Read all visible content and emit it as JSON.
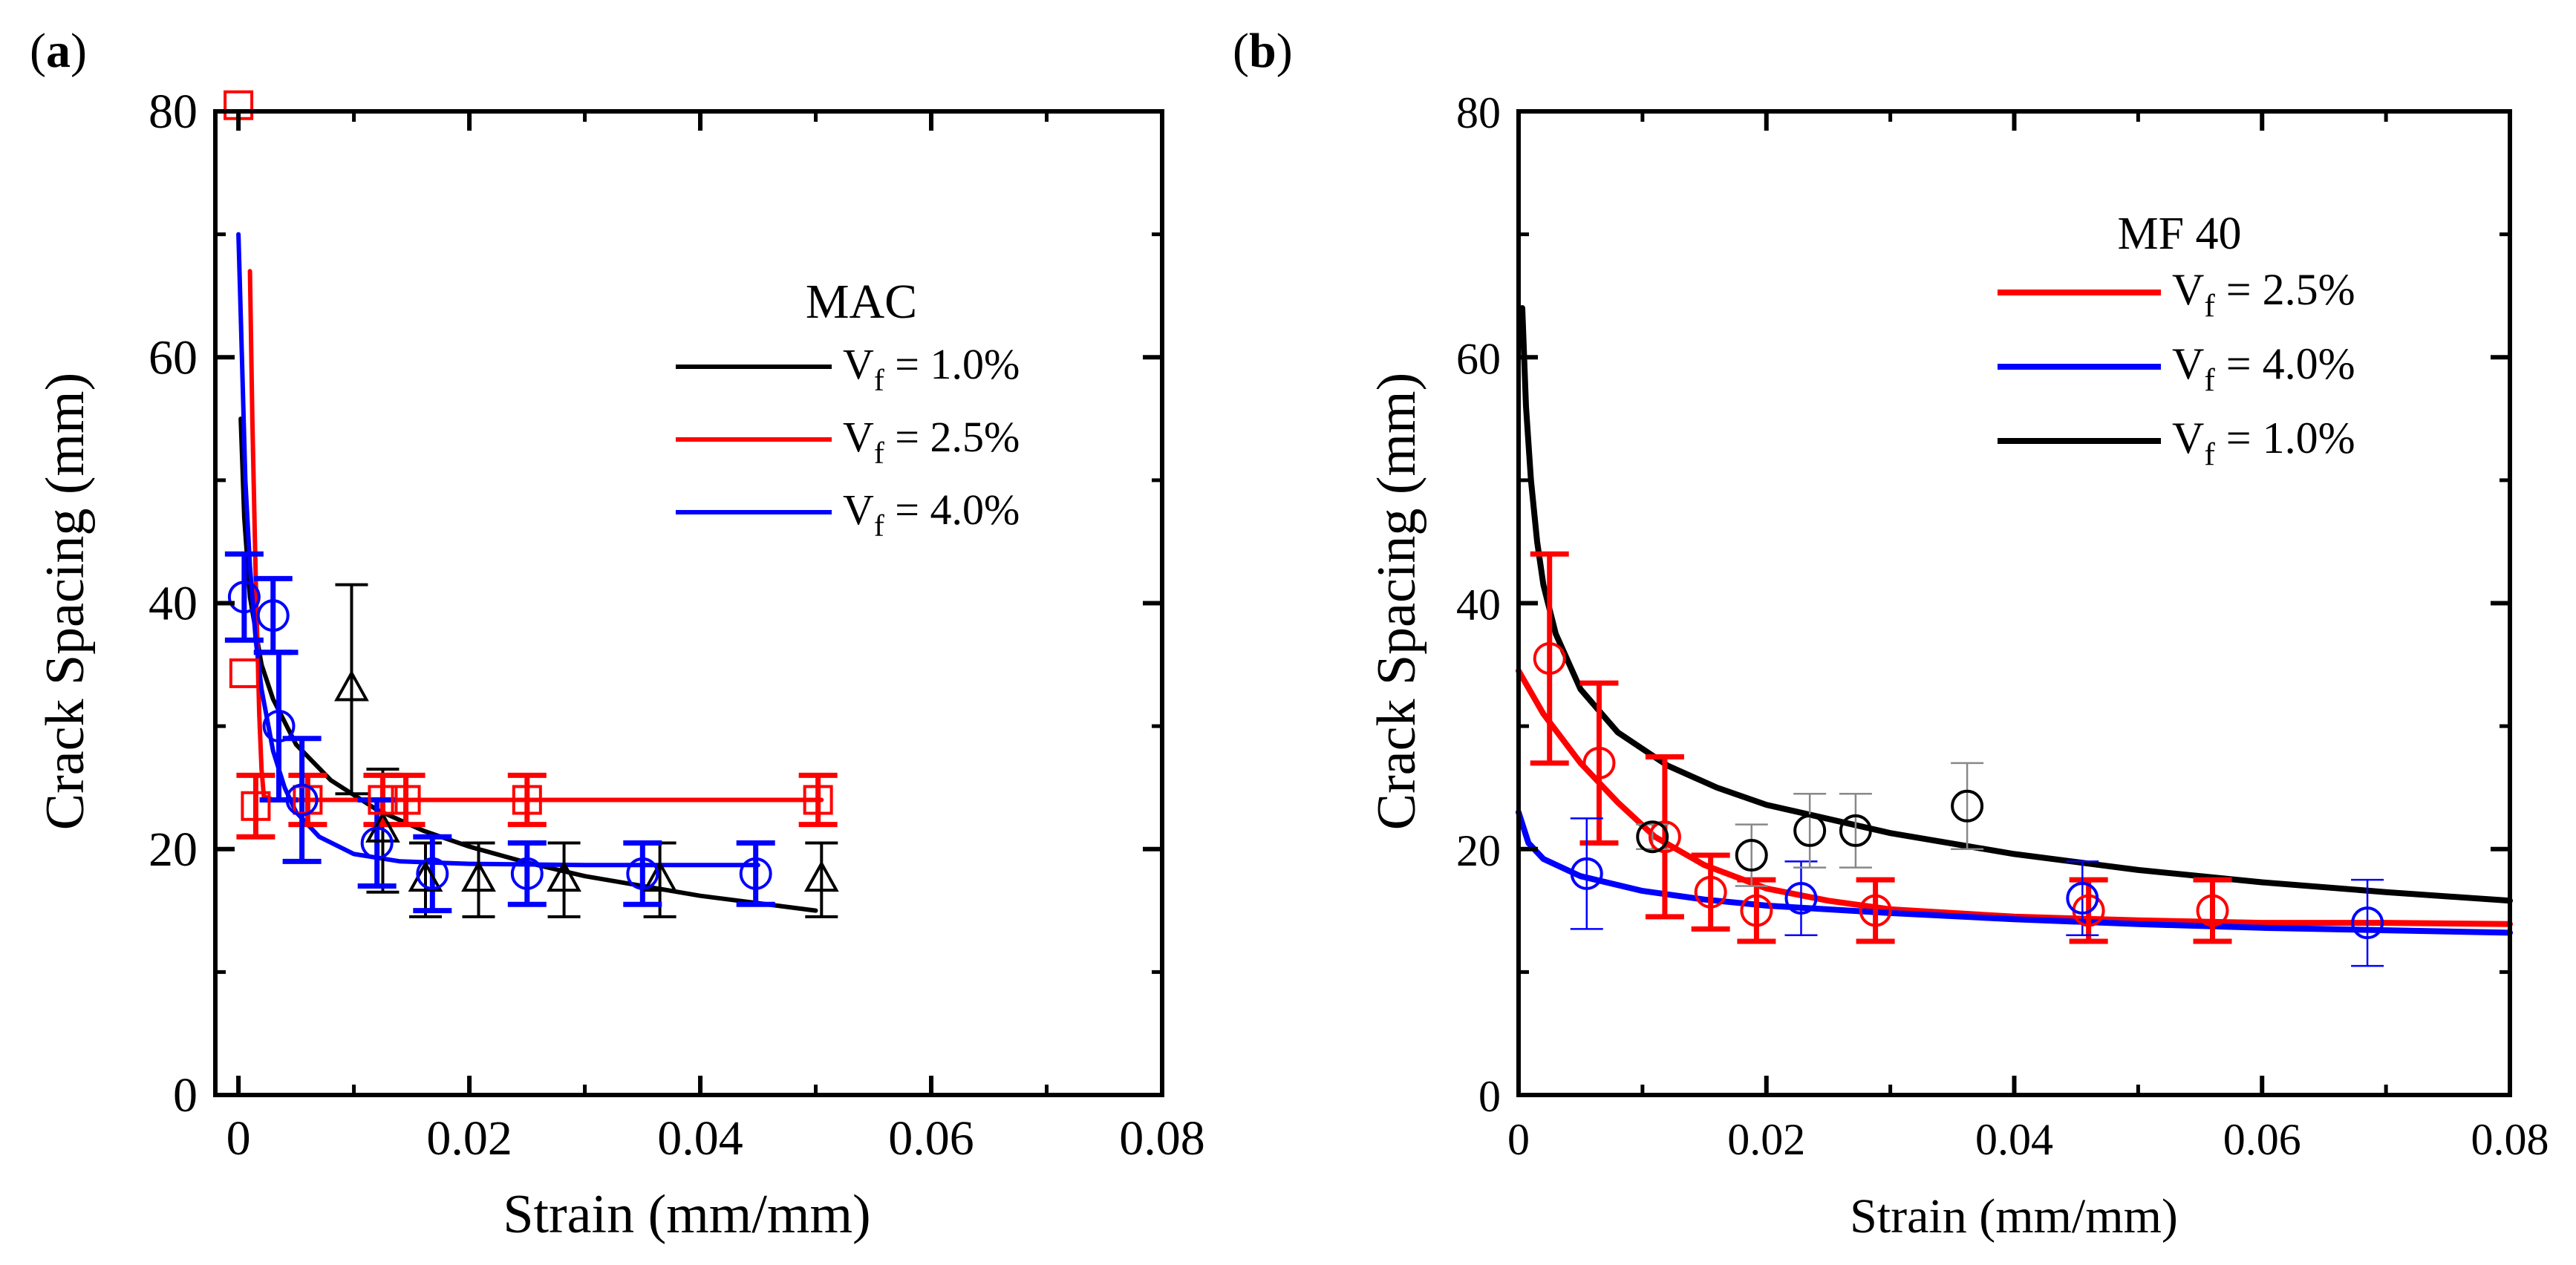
{
  "chart_data": [
    {
      "type": "scatter",
      "panel_label": "(a)",
      "xlabel": "Strain (mm/mm)",
      "ylabel": "Crack Spacing (mm)",
      "xlim": [
        -0.002,
        0.08
      ],
      "ylim": [
        0,
        80
      ],
      "xticks": [
        0,
        0.02,
        0.04,
        0.06,
        0.08
      ],
      "xtick_labels": [
        "0",
        "0.02",
        "0.04",
        "0.06",
        "0.08"
      ],
      "yticks": [
        0,
        20,
        40,
        60,
        80
      ],
      "ytick_labels": [
        "0",
        "20",
        "40",
        "60",
        "80"
      ],
      "legend_title": "MAC",
      "legend_position": "right",
      "series": [
        {
          "name_main": "V",
          "name_sub": "f",
          "name_rest": " = 1.0%",
          "color": "#000000",
          "marker": "triangle",
          "marker_color": "#000000",
          "errbar_color": "#000000",
          "errbar_weight": "normal",
          "points": [
            {
              "x": 0.0098,
              "y": 33.0,
              "err": 8.5
            },
            {
              "x": 0.0125,
              "y": 21.5,
              "err": 5.0
            },
            {
              "x": 0.0162,
              "y": 17.5,
              "err": 3.0
            },
            {
              "x": 0.0208,
              "y": 17.5,
              "err": 3.0
            },
            {
              "x": 0.0282,
              "y": 17.5,
              "err": 3.0
            },
            {
              "x": 0.0365,
              "y": 17.5,
              "err": 3.0
            },
            {
              "x": 0.0505,
              "y": 17.5,
              "err": 3.0
            }
          ],
          "fit": [
            [
              0.0002,
              55.0
            ],
            [
              0.0005,
              47.0
            ],
            [
              0.001,
              40.5
            ],
            [
              0.002,
              35.0
            ],
            [
              0.003,
              32.2
            ],
            [
              0.005,
              28.5
            ],
            [
              0.008,
              25.6
            ],
            [
              0.012,
              23.2
            ],
            [
              0.016,
              21.5
            ],
            [
              0.02,
              20.2
            ],
            [
              0.025,
              18.9
            ],
            [
              0.03,
              17.8
            ],
            [
              0.035,
              17.0
            ],
            [
              0.04,
              16.2
            ],
            [
              0.045,
              15.6
            ],
            [
              0.05,
              15.0
            ]
          ]
        },
        {
          "name_main": "V",
          "name_sub": "f",
          "name_rest": " = 2.5%",
          "color": "#ff0000",
          "marker": "square",
          "marker_color": "#ff0000",
          "errbar_color": "#ff0000",
          "errbar_weight": "bold",
          "points": [
            {
              "x": 0.0,
              "y": 80.5,
              "err": 0
            },
            {
              "x": 0.0005,
              "y": 34.3,
              "err": 0
            },
            {
              "x": 0.0015,
              "y": 23.5,
              "err": 2.5
            },
            {
              "x": 0.006,
              "y": 24.0,
              "err": 2.0
            },
            {
              "x": 0.0125,
              "y": 24.0,
              "err": 2.0
            },
            {
              "x": 0.0145,
              "y": 24.0,
              "err": 2.0
            },
            {
              "x": 0.025,
              "y": 24.0,
              "err": 2.0
            },
            {
              "x": 0.0502,
              "y": 24.0,
              "err": 2.0
            }
          ],
          "fit": [
            [
              0.001,
              67.0
            ],
            [
              0.0012,
              55.0
            ],
            [
              0.0015,
              42.0
            ],
            [
              0.0018,
              31.0
            ],
            [
              0.002,
              26.5
            ],
            [
              0.0022,
              24.3
            ],
            [
              0.003,
              24.0
            ],
            [
              0.0505,
              24.0
            ]
          ]
        },
        {
          "name_main": "V",
          "name_sub": "f",
          "name_rest": " = 4.0%",
          "color": "#0000ff",
          "marker": "circle",
          "marker_color": "#0000ff",
          "errbar_color": "#0000ff",
          "errbar_weight": "bold",
          "points": [
            {
              "x": 0.0005,
              "y": 40.5,
              "err": 3.5
            },
            {
              "x": 0.003,
              "y": 39.0,
              "err": 3.0
            },
            {
              "x": 0.0035,
              "y": 30.0,
              "err": 6.0
            },
            {
              "x": 0.0055,
              "y": 24.0,
              "err": 5.0
            },
            {
              "x": 0.012,
              "y": 20.5,
              "err": 3.5
            },
            {
              "x": 0.0168,
              "y": 18.0,
              "err": 3.0
            },
            {
              "x": 0.025,
              "y": 18.0,
              "err": 2.5
            },
            {
              "x": 0.035,
              "y": 18.0,
              "err": 2.5
            },
            {
              "x": 0.0448,
              "y": 18.0,
              "err": 2.5
            }
          ],
          "fit": [
            [
              0.0,
              70.0
            ],
            [
              0.0003,
              60.0
            ],
            [
              0.0006,
              50.0
            ],
            [
              0.001,
              43.0
            ],
            [
              0.0015,
              37.0
            ],
            [
              0.002,
              33.0
            ],
            [
              0.003,
              28.0
            ],
            [
              0.004,
              25.0
            ],
            [
              0.005,
              23.0
            ],
            [
              0.007,
              21.0
            ],
            [
              0.01,
              19.6
            ],
            [
              0.014,
              19.0
            ],
            [
              0.02,
              18.8
            ],
            [
              0.03,
              18.7
            ],
            [
              0.045,
              18.7
            ]
          ]
        }
      ]
    },
    {
      "type": "scatter",
      "panel_label": "(b)",
      "xlabel": "Strain (mm/mm)",
      "ylabel": "Crack Spacing (mm)",
      "xlim": [
        0,
        0.08
      ],
      "ylim": [
        0,
        80
      ],
      "xticks": [
        0,
        0.02,
        0.04,
        0.06,
        0.08
      ],
      "xtick_labels": [
        "0",
        "0.02",
        "0.04",
        "0.06",
        "0.08"
      ],
      "yticks": [
        0,
        20,
        40,
        60,
        80
      ],
      "ytick_labels": [
        "0",
        "20",
        "40",
        "60",
        "80"
      ],
      "legend_title": "MF 40",
      "legend_position": "top-right",
      "series": [
        {
          "name_main": "V",
          "name_sub": "f",
          "name_rest": " = 2.5%",
          "color": "#ff0000",
          "marker": "circle",
          "marker_color": "#ff0000",
          "errbar_color": "#ff0000",
          "errbar_weight": "bold",
          "points": [
            {
              "x": 0.0025,
              "y": 35.5,
              "err": 8.5
            },
            {
              "x": 0.0065,
              "y": 27.0,
              "err": 6.5
            },
            {
              "x": 0.0118,
              "y": 21.0,
              "err": 6.5
            },
            {
              "x": 0.0155,
              "y": 16.5,
              "err": 3.0
            },
            {
              "x": 0.0192,
              "y": 15.0,
              "err": 2.5
            },
            {
              "x": 0.0288,
              "y": 15.0,
              "err": 2.5
            },
            {
              "x": 0.046,
              "y": 15.0,
              "err": 2.5
            },
            {
              "x": 0.056,
              "y": 15.0,
              "err": 2.5
            }
          ],
          "fit": [
            [
              0.0,
              34.5
            ],
            [
              0.002,
              31.0
            ],
            [
              0.005,
              27.0
            ],
            [
              0.008,
              23.8
            ],
            [
              0.011,
              21.0
            ],
            [
              0.015,
              18.7
            ],
            [
              0.02,
              16.8
            ],
            [
              0.025,
              15.8
            ],
            [
              0.03,
              15.1
            ],
            [
              0.04,
              14.5
            ],
            [
              0.05,
              14.2
            ],
            [
              0.06,
              14.0
            ],
            [
              0.07,
              14.0
            ],
            [
              0.08,
              13.9
            ]
          ]
        },
        {
          "name_main": "V",
          "name_sub": "f",
          "name_rest": " = 4.0%",
          "color": "#0000ff",
          "marker": "circle",
          "marker_color": "#0000ff",
          "errbar_color": "#0000ff",
          "errbar_weight": "thin",
          "points": [
            {
              "x": 0.0055,
              "y": 18.0,
              "err": 4.5
            },
            {
              "x": 0.0228,
              "y": 16.0,
              "err": 3.0
            },
            {
              "x": 0.0455,
              "y": 16.0,
              "err": 3.0
            },
            {
              "x": 0.0685,
              "y": 14.0,
              "err": 3.5
            }
          ],
          "fit": [
            [
              0.0,
              23.0
            ],
            [
              0.0008,
              20.5
            ],
            [
              0.002,
              19.2
            ],
            [
              0.005,
              17.8
            ],
            [
              0.01,
              16.6
            ],
            [
              0.015,
              15.9
            ],
            [
              0.02,
              15.4
            ],
            [
              0.03,
              14.8
            ],
            [
              0.04,
              14.3
            ],
            [
              0.05,
              13.9
            ],
            [
              0.06,
              13.6
            ],
            [
              0.07,
              13.4
            ],
            [
              0.08,
              13.2
            ]
          ]
        },
        {
          "name_main": "V",
          "name_sub": "f",
          "name_rest": " = 1.0%",
          "color": "#000000",
          "marker": "circle",
          "marker_color": "#000000",
          "errbar_color": "#888888",
          "errbar_weight": "thin",
          "points": [
            {
              "x": 0.0108,
              "y": 21.0,
              "err": 1.0
            },
            {
              "x": 0.0188,
              "y": 19.5,
              "err": 2.5
            },
            {
              "x": 0.0235,
              "y": 21.5,
              "err": 3.0
            },
            {
              "x": 0.0272,
              "y": 21.5,
              "err": 3.0
            },
            {
              "x": 0.0362,
              "y": 23.5,
              "err": 3.5
            }
          ],
          "fit": [
            [
              0.0003,
              64.0
            ],
            [
              0.0006,
              56.0
            ],
            [
              0.001,
              50.0
            ],
            [
              0.0015,
              45.0
            ],
            [
              0.002,
              41.5
            ],
            [
              0.003,
              37.5
            ],
            [
              0.005,
              33.0
            ],
            [
              0.008,
              29.5
            ],
            [
              0.012,
              26.8
            ],
            [
              0.016,
              25.0
            ],
            [
              0.02,
              23.6
            ],
            [
              0.03,
              21.3
            ],
            [
              0.04,
              19.6
            ],
            [
              0.05,
              18.3
            ],
            [
              0.06,
              17.3
            ],
            [
              0.07,
              16.5
            ],
            [
              0.08,
              15.8
            ]
          ]
        }
      ]
    }
  ]
}
